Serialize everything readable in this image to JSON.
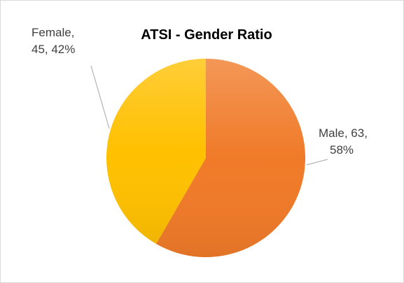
{
  "chart_data": {
    "type": "pie",
    "title": "ATSI - Gender Ratio",
    "categories": [
      "Male",
      "Female"
    ],
    "values": [
      63,
      45
    ],
    "value_labels": [
      "Male, 63, 58%",
      "Female, 45, 42%"
    ],
    "colors": [
      "#F07A28",
      "#FFC000"
    ]
  }
}
